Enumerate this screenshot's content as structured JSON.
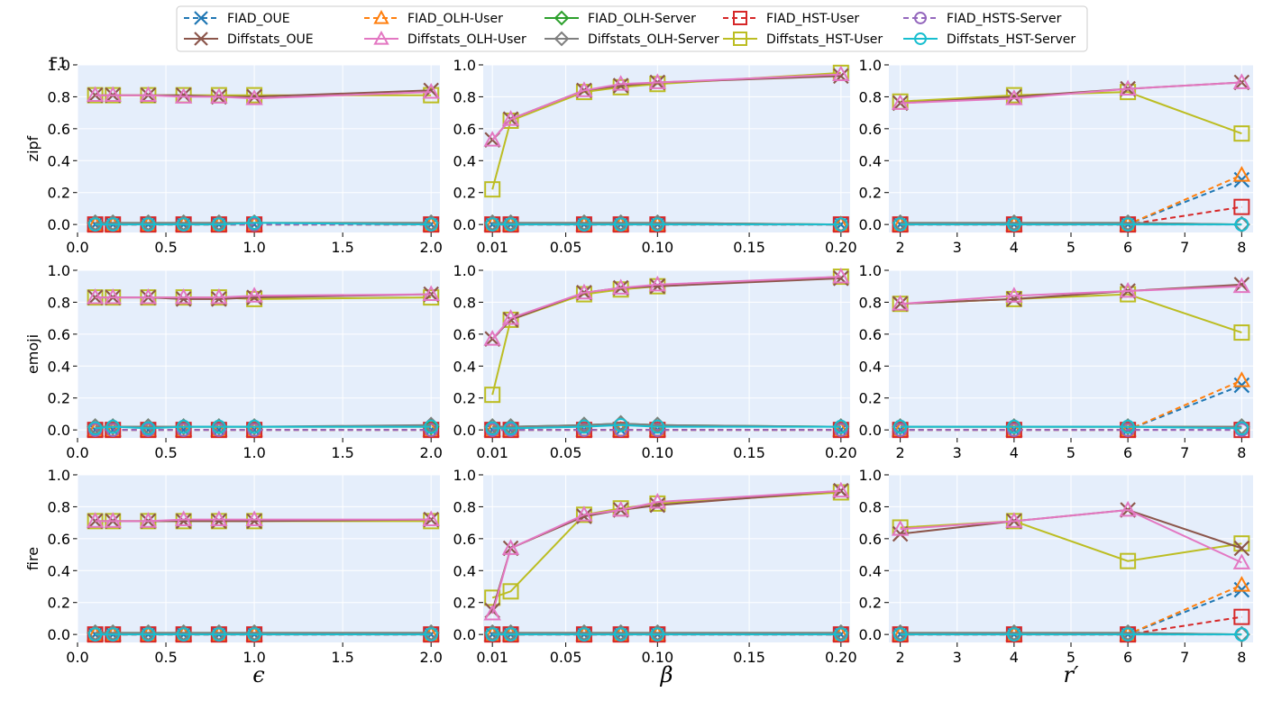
{
  "chart_data": {
    "type": "line",
    "y_axis_title": "F1",
    "ylim": [
      0,
      1.0
    ],
    "yticks": [
      "0.0",
      "0.2",
      "0.4",
      "0.6",
      "0.8",
      "1.0"
    ],
    "row_labels": [
      "zipf",
      "emoji",
      "fire"
    ],
    "columns": [
      {
        "xlabel": "ϵ",
        "xlim": [
          0,
          2.05
        ],
        "xticks": [
          "0.0",
          "0.5",
          "1.0",
          "1.5",
          "2.0"
        ],
        "x": [
          0.1,
          0.2,
          0.4,
          0.6,
          0.8,
          1.0,
          2.0
        ]
      },
      {
        "xlabel": "β",
        "xlim": [
          0.005,
          0.205
        ],
        "xticks": [
          "0.01",
          "0.05",
          "0.10",
          "0.15",
          "0.20"
        ],
        "x": [
          0.01,
          0.02,
          0.06,
          0.08,
          0.1,
          0.2
        ]
      },
      {
        "xlabel": "r′",
        "xlim": [
          1.8,
          8.2
        ],
        "xticks": [
          "2",
          "3",
          "4",
          "5",
          "6",
          "7",
          "8"
        ],
        "x": [
          2,
          4,
          6,
          8
        ]
      }
    ],
    "series": [
      {
        "name": "FIAD_OUE",
        "color": "#1f77b4",
        "dash": true,
        "marker": "x"
      },
      {
        "name": "Diffstats_OUE",
        "color": "#8c564b",
        "dash": false,
        "marker": "x"
      },
      {
        "name": "FIAD_OLH-User",
        "color": "#ff7f0e",
        "dash": true,
        "marker": "triangle"
      },
      {
        "name": "Diffstats_OLH-User",
        "color": "#e377c2",
        "dash": false,
        "marker": "triangle"
      },
      {
        "name": "FIAD_OLH-Server",
        "color": "#2ca02c",
        "dash": false,
        "marker": "diamond"
      },
      {
        "name": "Diffstats_OLH-Server",
        "color": "#7f7f7f",
        "dash": false,
        "marker": "diamond"
      },
      {
        "name": "FIAD_HST-User",
        "color": "#d62728",
        "dash": true,
        "marker": "square"
      },
      {
        "name": "Diffstats_HST-User",
        "color": "#bcbd22",
        "dash": false,
        "marker": "square"
      },
      {
        "name": "FIAD_HSTS-Server",
        "color": "#9467bd",
        "dash": true,
        "marker": "circle"
      },
      {
        "name": "Diffstats_HST-Server",
        "color": "#17becf",
        "dash": false,
        "marker": "circle"
      }
    ],
    "panels": [
      [
        {
          "FIAD_OUE": [
            0,
            0,
            0,
            0,
            0,
            0,
            0
          ],
          "Diffstats_OUE": [
            0.81,
            0.81,
            0.81,
            0.81,
            0.8,
            0.8,
            0.84
          ],
          "FIAD_OLH-User": [
            0,
            0,
            0,
            0,
            0,
            0,
            0
          ],
          "Diffstats_OLH-User": [
            0.81,
            0.81,
            0.81,
            0.8,
            0.8,
            0.79,
            0.83
          ],
          "FIAD_OLH-Server": [
            0.01,
            0.01,
            0.01,
            0.01,
            0.01,
            0.01,
            0.01
          ],
          "Diffstats_OLH-Server": [
            0.01,
            0.01,
            0.01,
            0.01,
            0.01,
            0.01,
            0.01
          ],
          "FIAD_HST-User": [
            0,
            0,
            0,
            0,
            0,
            0,
            0
          ],
          "Diffstats_HST-User": [
            0.81,
            0.81,
            0.81,
            0.81,
            0.81,
            0.81,
            0.81
          ],
          "FIAD_HSTS-Server": [
            0,
            0,
            0,
            0,
            0,
            0,
            0
          ],
          "Diffstats_HST-Server": [
            0,
            0,
            0,
            0,
            0,
            0.01,
            0
          ]
        },
        {
          "FIAD_OUE": [
            0,
            0,
            0,
            0,
            0,
            0
          ],
          "Diffstats_OUE": [
            0.53,
            0.66,
            0.84,
            0.87,
            0.89,
            0.93
          ],
          "FIAD_OLH-User": [
            0,
            0,
            0,
            0,
            0,
            0
          ],
          "Diffstats_OLH-User": [
            0.53,
            0.66,
            0.84,
            0.88,
            0.89,
            0.94
          ],
          "FIAD_OLH-Server": [
            0.01,
            0.01,
            0.01,
            0.01,
            0.01,
            0
          ],
          "Diffstats_OLH-Server": [
            0.01,
            0.01,
            0.01,
            0.01,
            0.01,
            0
          ],
          "FIAD_HST-User": [
            0,
            0,
            0,
            0,
            0,
            0
          ],
          "Diffstats_HST-User": [
            0.22,
            0.65,
            0.83,
            0.86,
            0.88,
            0.95
          ],
          "FIAD_HSTS-Server": [
            0,
            0,
            0,
            0,
            0,
            0
          ],
          "Diffstats_HST-Server": [
            0,
            0,
            0,
            0,
            0,
            0
          ]
        },
        {
          "FIAD_OUE": [
            0,
            0,
            0,
            0.28
          ],
          "Diffstats_OUE": [
            0.76,
            0.8,
            0.85,
            0.89
          ],
          "FIAD_OLH-User": [
            0,
            0,
            0,
            0.31
          ],
          "Diffstats_OLH-User": [
            0.76,
            0.79,
            0.85,
            0.89
          ],
          "FIAD_OLH-Server": [
            0.01,
            0.01,
            0.01,
            0
          ],
          "Diffstats_OLH-Server": [
            0.01,
            0.01,
            0.01,
            0
          ],
          "FIAD_HST-User": [
            0,
            0,
            0,
            0.11
          ],
          "Diffstats_HST-User": [
            0.77,
            0.81,
            0.83,
            0.57
          ],
          "FIAD_HSTS-Server": [
            0,
            0,
            0,
            0
          ],
          "Diffstats_HST-Server": [
            0,
            0,
            0,
            0
          ]
        }
      ],
      [
        {
          "FIAD_OUE": [
            0,
            0,
            0,
            0,
            0,
            0,
            0
          ],
          "Diffstats_OUE": [
            0.83,
            0.83,
            0.83,
            0.82,
            0.82,
            0.83,
            0.85
          ],
          "FIAD_OLH-User": [
            0,
            0,
            0,
            0,
            0,
            0,
            0
          ],
          "Diffstats_OLH-User": [
            0.83,
            0.83,
            0.83,
            0.83,
            0.83,
            0.84,
            0.85
          ],
          "FIAD_OLH-Server": [
            0.02,
            0.02,
            0.02,
            0.02,
            0.02,
            0.02,
            0.02
          ],
          "Diffstats_OLH-Server": [
            0.02,
            0.02,
            0.02,
            0.02,
            0.02,
            0.02,
            0.03
          ],
          "FIAD_HST-User": [
            0,
            0,
            0,
            0,
            0,
            0,
            0
          ],
          "Diffstats_HST-User": [
            0.83,
            0.83,
            0.83,
            0.83,
            0.83,
            0.82,
            0.83
          ],
          "FIAD_HSTS-Server": [
            0,
            0,
            0,
            0,
            0,
            0,
            0
          ],
          "Diffstats_HST-Server": [
            0.01,
            0.02,
            0.01,
            0.02,
            0.02,
            0.02,
            0.02
          ]
        },
        {
          "FIAD_OUE": [
            0,
            0,
            0,
            0,
            0,
            0
          ],
          "Diffstats_OUE": [
            0.57,
            0.69,
            0.86,
            0.89,
            0.9,
            0.95
          ],
          "FIAD_OLH-User": [
            0,
            0,
            0,
            0,
            0,
            0
          ],
          "Diffstats_OLH-User": [
            0.57,
            0.7,
            0.86,
            0.89,
            0.91,
            0.96
          ],
          "FIAD_OLH-Server": [
            0.02,
            0.02,
            0.03,
            0.04,
            0.03,
            0.02
          ],
          "Diffstats_OLH-Server": [
            0.02,
            0.02,
            0.03,
            0.04,
            0.03,
            0.02
          ],
          "FIAD_HST-User": [
            0,
            0,
            0,
            0,
            0,
            0
          ],
          "Diffstats_HST-User": [
            0.22,
            0.69,
            0.85,
            0.88,
            0.9,
            0.96
          ],
          "FIAD_HSTS-Server": [
            0,
            0,
            0,
            0,
            0,
            0
          ],
          "Diffstats_HST-Server": [
            0.01,
            0.01,
            0.02,
            0.03,
            0.02,
            0.02
          ]
        },
        {
          "FIAD_OUE": [
            0,
            0,
            0,
            0.28
          ],
          "Diffstats_OUE": [
            0.79,
            0.82,
            0.87,
            0.91
          ],
          "FIAD_OLH-User": [
            0,
            0,
            0,
            0.31
          ],
          "Diffstats_OLH-User": [
            0.79,
            0.84,
            0.87,
            0.9
          ],
          "FIAD_OLH-Server": [
            0.02,
            0.02,
            0.02,
            0.02
          ],
          "Diffstats_OLH-Server": [
            0.02,
            0.02,
            0.02,
            0.02
          ],
          "FIAD_HST-User": [
            0,
            0,
            0,
            0
          ],
          "Diffstats_HST-User": [
            0.79,
            0.82,
            0.85,
            0.61
          ],
          "FIAD_HSTS-Server": [
            0,
            0,
            0,
            0
          ],
          "Diffstats_HST-Server": [
            0.02,
            0.02,
            0.02,
            0.01
          ]
        }
      ],
      [
        {
          "FIAD_OUE": [
            0,
            0,
            0,
            0,
            0,
            0,
            0
          ],
          "Diffstats_OUE": [
            0.71,
            0.71,
            0.71,
            0.71,
            0.71,
            0.71,
            0.72
          ],
          "FIAD_OLH-User": [
            0,
            0,
            0,
            0,
            0,
            0,
            0
          ],
          "Diffstats_OLH-User": [
            0.71,
            0.71,
            0.71,
            0.72,
            0.72,
            0.72,
            0.72
          ],
          "FIAD_OLH-Server": [
            0.01,
            0.01,
            0.01,
            0.01,
            0.01,
            0.01,
            0.01
          ],
          "Diffstats_OLH-Server": [
            0.01,
            0.01,
            0.01,
            0.01,
            0.01,
            0.01,
            0.01
          ],
          "FIAD_HST-User": [
            0,
            0,
            0,
            0,
            0,
            0,
            0
          ],
          "Diffstats_HST-User": [
            0.71,
            0.71,
            0.71,
            0.71,
            0.71,
            0.71,
            0.71
          ],
          "FIAD_HSTS-Server": [
            0,
            0,
            0,
            0,
            0,
            0,
            0
          ],
          "Diffstats_HST-Server": [
            0,
            0,
            0,
            0,
            0,
            0,
            0
          ]
        },
        {
          "FIAD_OUE": [
            0,
            0,
            0,
            0,
            0,
            0
          ],
          "Diffstats_OUE": [
            0.15,
            0.54,
            0.74,
            0.78,
            0.81,
            0.9
          ],
          "FIAD_OLH-User": [
            0,
            0,
            0,
            0,
            0,
            0
          ],
          "Diffstats_OLH-User": [
            0.13,
            0.54,
            0.75,
            0.78,
            0.83,
            0.9
          ],
          "FIAD_OLH-Server": [
            0.01,
            0.01,
            0.01,
            0.01,
            0.01,
            0.01
          ],
          "Diffstats_OLH-Server": [
            0.01,
            0.01,
            0.01,
            0.01,
            0.01,
            0.01
          ],
          "FIAD_HST-User": [
            0,
            0,
            0,
            0,
            0,
            0
          ],
          "Diffstats_HST-User": [
            0.23,
            0.27,
            0.75,
            0.79,
            0.82,
            0.89
          ],
          "FIAD_HSTS-Server": [
            0,
            0,
            0,
            0,
            0,
            0
          ],
          "Diffstats_HST-Server": [
            0,
            0,
            0,
            0,
            0,
            0
          ]
        },
        {
          "FIAD_OUE": [
            0,
            0,
            0,
            0.28
          ],
          "Diffstats_OUE": [
            0.63,
            0.71,
            0.78,
            0.54
          ],
          "FIAD_OLH-User": [
            0,
            0,
            0,
            0.31
          ],
          "Diffstats_OLH-User": [
            0.66,
            0.71,
            0.78,
            0.45
          ],
          "FIAD_OLH-Server": [
            0.01,
            0.01,
            0.01,
            0
          ],
          "Diffstats_OLH-Server": [
            0.01,
            0.01,
            0.01,
            0
          ],
          "FIAD_HST-User": [
            0,
            0,
            0,
            0.11
          ],
          "Diffstats_HST-User": [
            0.67,
            0.71,
            0.46,
            0.57
          ],
          "FIAD_HSTS-Server": [
            0,
            0,
            0,
            0
          ],
          "Diffstats_HST-Server": [
            0,
            0,
            0,
            0
          ]
        }
      ]
    ]
  }
}
